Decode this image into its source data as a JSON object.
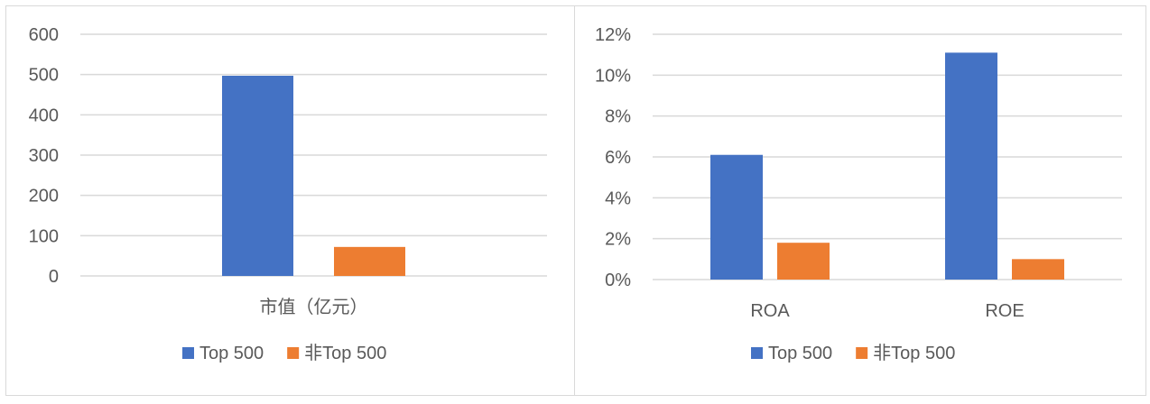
{
  "chart_data": [
    {
      "type": "bar",
      "categories": [
        "市值（亿元）"
      ],
      "series": [
        {
          "name": "Top 500",
          "values": [
            497
          ],
          "color": "#4472C4"
        },
        {
          "name": "非Top 500",
          "values": [
            72
          ],
          "color": "#ED7D31"
        }
      ],
      "ylim": [
        0,
        600
      ],
      "yticks": [
        "0",
        "100",
        "200",
        "300",
        "400",
        "500",
        "600"
      ],
      "grid": true,
      "legend": "bottom"
    },
    {
      "type": "bar",
      "categories": [
        "ROA",
        "ROE"
      ],
      "series": [
        {
          "name": "Top 500",
          "values": [
            6.1,
            11.1
          ],
          "color": "#4472C4"
        },
        {
          "name": "非Top 500",
          "values": [
            1.8,
            1.0
          ],
          "color": "#ED7D31"
        }
      ],
      "ylim": [
        0,
        12
      ],
      "yticks": [
        "0%",
        "2%",
        "4%",
        "6%",
        "8%",
        "10%",
        "12%"
      ],
      "grid": true,
      "legend": "bottom"
    }
  ]
}
